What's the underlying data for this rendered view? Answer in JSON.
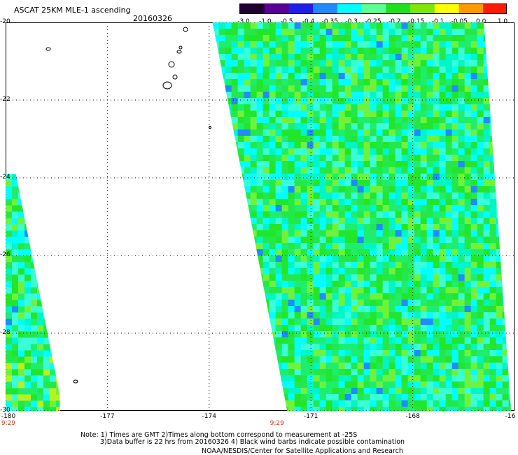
{
  "title": "ASCAT 25KM MLE-1 ascending",
  "date": "20160326",
  "colorbar": {
    "colors": [
      "#200030",
      "#5a0096",
      "#1f1fe6",
      "#1e8cff",
      "#00ffff",
      "#5cff92",
      "#1fe21f",
      "#7ee60a",
      "#ffff00",
      "#ff9900",
      "#ff1a00"
    ],
    "labels": [
      "-3.0",
      "-1.0",
      "-0.5",
      "-0.4",
      "-0.35",
      "-0.3",
      "-0.25",
      "-0.2",
      "-0.15",
      "-0.1",
      "-0.05",
      "0.0",
      "1.0"
    ]
  },
  "lat_labels": [
    "-20",
    "-22",
    "-24",
    "-26",
    "-28",
    "-30"
  ],
  "lon_labels": [
    "-180",
    "-177",
    "-174",
    "-171",
    "-168",
    "-16"
  ],
  "time_labels": [
    "9:29",
    "9:29"
  ],
  "notes": [
    "Note: 1) Times are GMT 2)Times along bottom correspond to measurement at -25S",
    "3)Data buffer is 22 hrs from 20160326 4) Black wind barbs indicate possible contamination"
  ],
  "credit": "NOAA/NESDIS/Center for Satellite Applications and Research",
  "map": {
    "lat_range": [
      -30,
      -20
    ],
    "lon_range": [
      -180,
      -165
    ],
    "grid": true,
    "grid_lats": [
      -20,
      -22,
      -24,
      -26,
      -28,
      -30
    ],
    "grid_lons": [
      -180,
      -177,
      -174,
      -171,
      -168
    ],
    "swaths": [
      {
        "name": "west",
        "polygon_lonlat": [
          [
            -180,
            -23.9
          ],
          [
            -179.7,
            -23.9
          ],
          [
            -178.4,
            -29.6
          ],
          [
            -178.4,
            -30
          ],
          [
            -180,
            -30
          ]
        ]
      },
      {
        "name": "east",
        "polygon_lonlat": [
          [
            -173.9,
            -20
          ],
          [
            -171.9,
            -20
          ],
          [
            -165.9,
            -20
          ],
          [
            -165.1,
            -30
          ],
          [
            -171.7,
            -30
          ],
          [
            -172.9,
            -24.5
          ]
        ]
      }
    ]
  }
}
